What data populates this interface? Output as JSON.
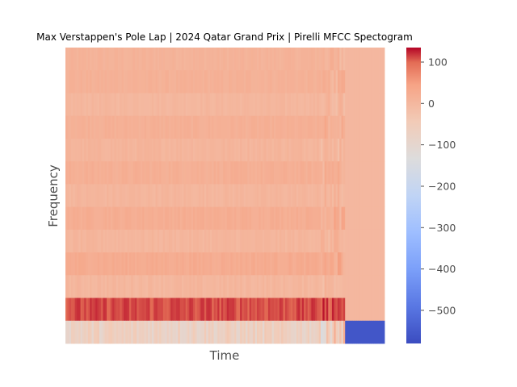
{
  "chart_data": {
    "type": "heatmap",
    "title": "Max Verstappen's Pole Lap | 2024 Qatar Grand Prix | Pirelli MFCC Spectogram",
    "xlabel": "Time",
    "ylabel": "Frequency",
    "colormap": "coolwarm",
    "colorbar": {
      "range": [
        -580,
        135
      ],
      "ticks": [
        100,
        0,
        -100,
        -200,
        -300,
        -400,
        -500
      ],
      "tick_labels": [
        "100",
        "0",
        "−100",
        "−200",
        "−300",
        "−400",
        "−500"
      ]
    },
    "n_time_frames": 170,
    "active_fraction": 0.877,
    "padding_value": 0,
    "last_row_padding_value": -560,
    "coefficient_rows_top_to_bottom": [
      {
        "mean": 10,
        "variation": 6
      },
      {
        "mean": 14,
        "variation": 6
      },
      {
        "mean": 2,
        "variation": 6
      },
      {
        "mean": 16,
        "variation": 6
      },
      {
        "mean": 6,
        "variation": 7
      },
      {
        "mean": 18,
        "variation": 7
      },
      {
        "mean": 4,
        "variation": 7
      },
      {
        "mean": 22,
        "variation": 7
      },
      {
        "mean": 4,
        "variation": 7
      },
      {
        "mean": 26,
        "variation": 8
      },
      {
        "mean": 2,
        "variation": 8
      },
      {
        "mean": 110,
        "variation": 12
      },
      {
        "mean": -70,
        "variation": 35
      }
    ]
  }
}
